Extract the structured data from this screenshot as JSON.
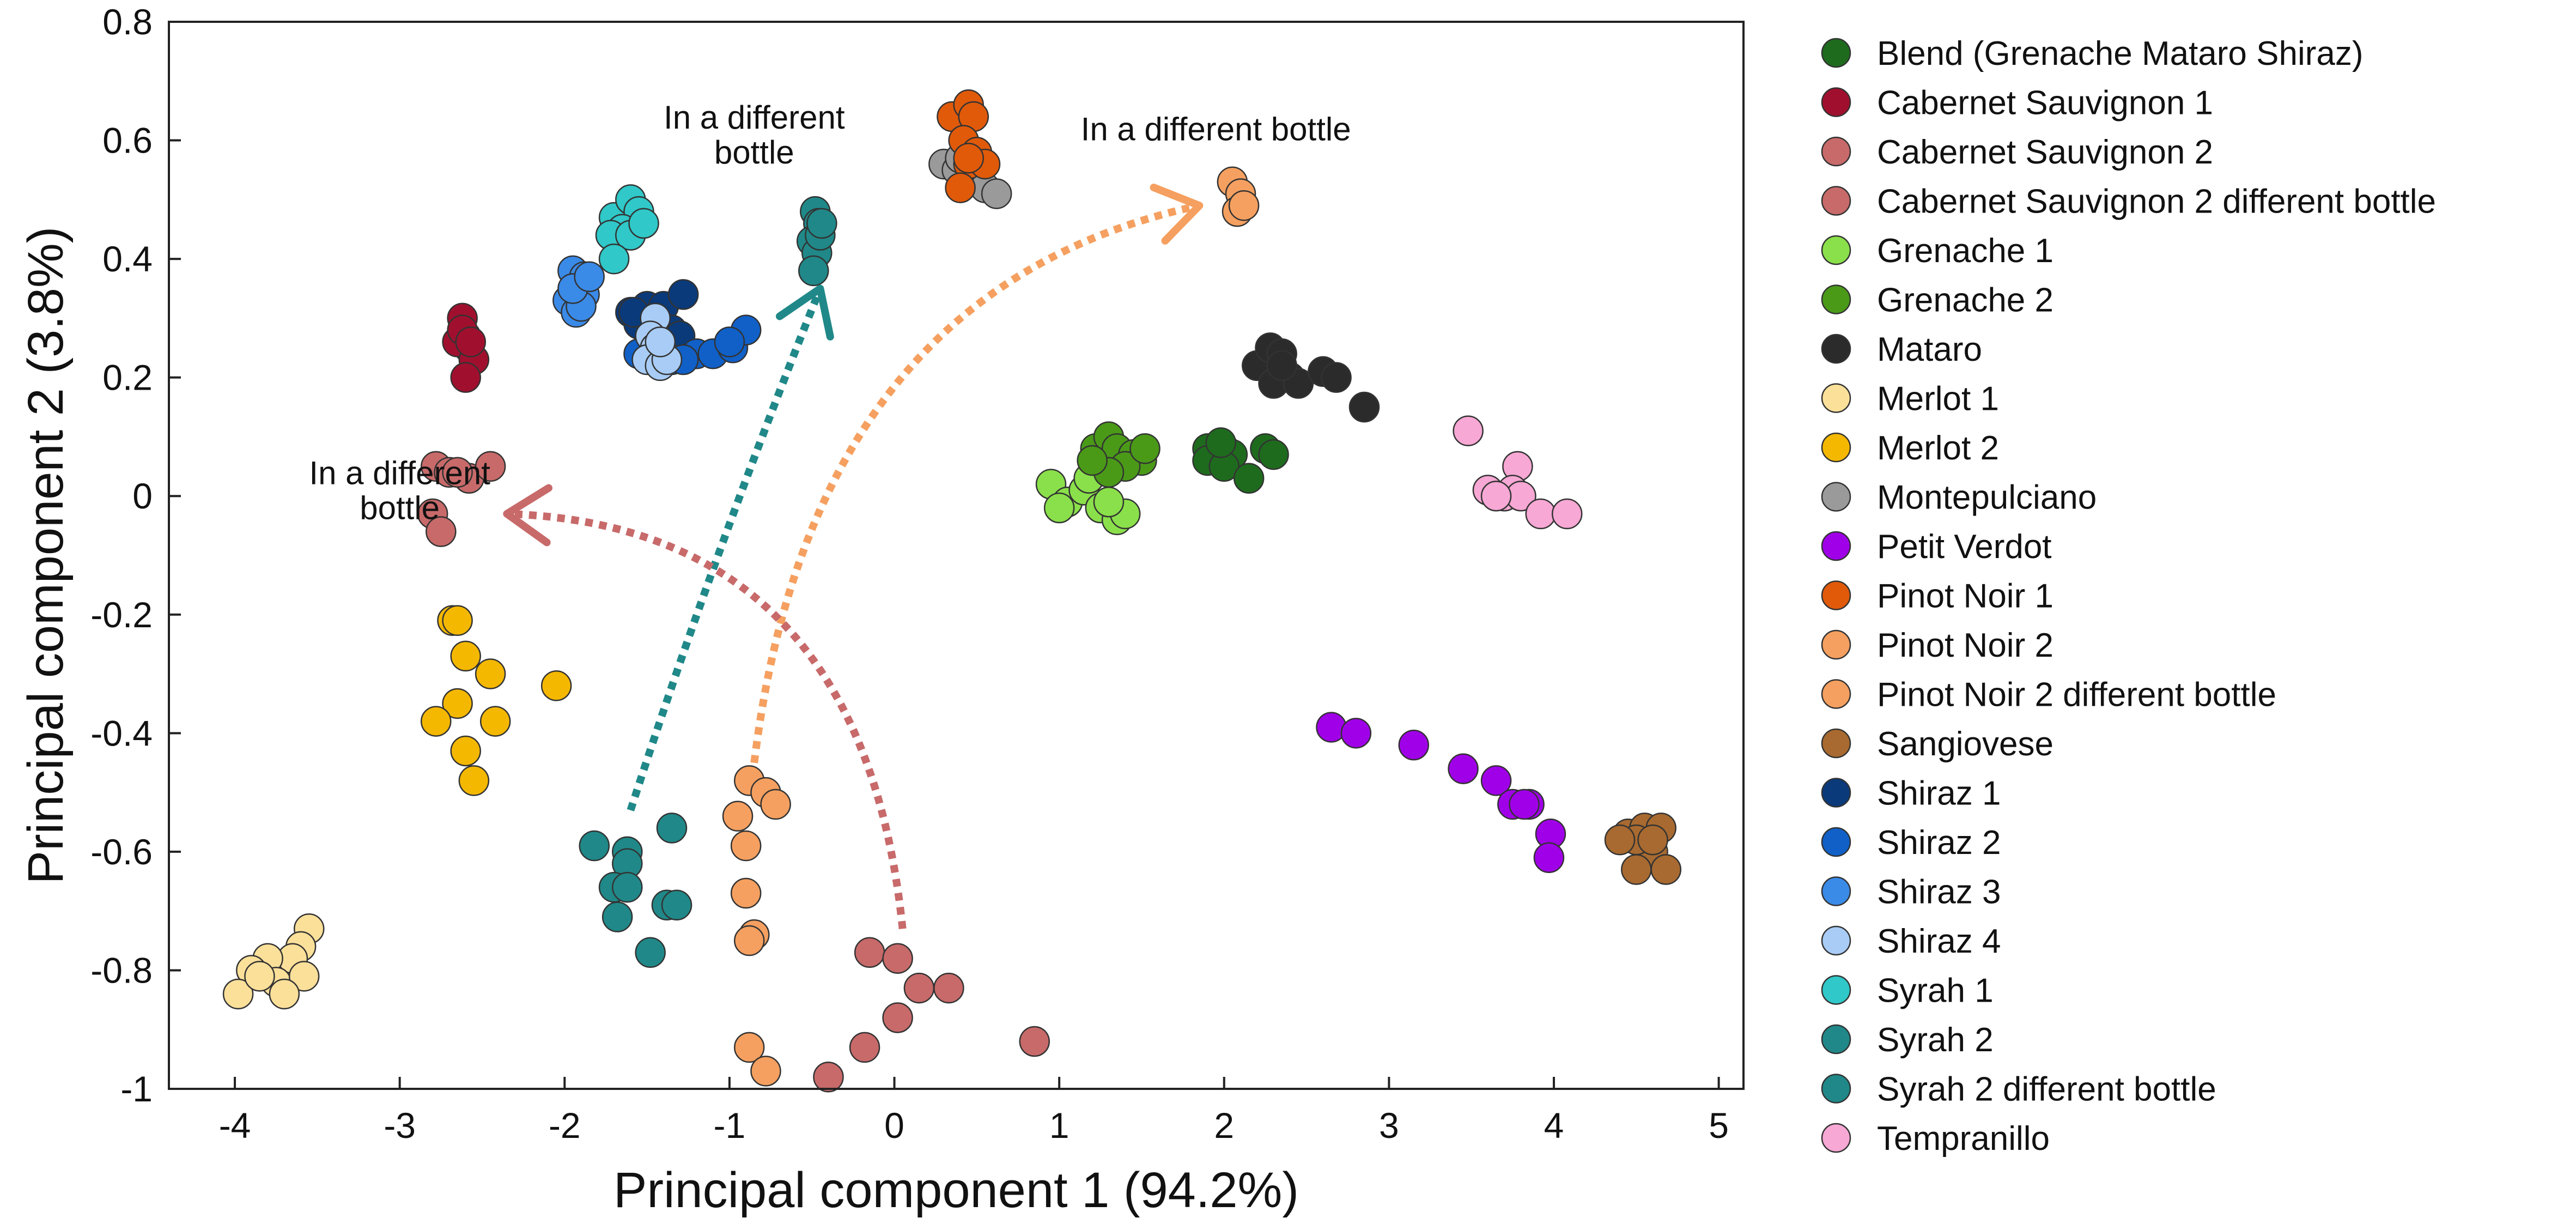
{
  "chart_data": {
    "type": "scatter",
    "xlabel": "Principal component 1 (94.2%)",
    "ylabel": "Principal component 2 (3.8%)",
    "xlim": [
      -4.4,
      5.15
    ],
    "ylim": [
      -1.0,
      0.8
    ],
    "xticks": [
      -4,
      -3,
      -2,
      -1,
      0,
      1,
      2,
      3,
      4,
      5
    ],
    "yticks": [
      0.8,
      0.6,
      0.4,
      0.2,
      0,
      -0.2,
      -0.4,
      -0.6,
      -0.8,
      -1
    ],
    "xtick_labels": [
      "-4",
      "-3",
      "-2",
      "-1",
      "0",
      "1",
      "2",
      "3",
      "4",
      "5"
    ],
    "ytick_labels": [
      "0.8",
      "0.6",
      "0.4",
      "0.2",
      "0",
      "-0.2",
      "-0.4",
      "-0.6",
      "-0.8",
      "-1"
    ],
    "grid": false,
    "legend_position": "right",
    "series": [
      {
        "name": "Blend (Grenache Mataro Shiraz)",
        "color": "#1e6b1e",
        "points": [
          [
            1.9,
            0.08
          ],
          [
            1.95,
            0.06
          ],
          [
            2.0,
            0.08
          ],
          [
            2.05,
            0.07
          ],
          [
            1.9,
            0.06
          ],
          [
            2.0,
            0.05
          ],
          [
            2.15,
            0.03
          ],
          [
            2.25,
            0.08
          ],
          [
            2.3,
            0.07
          ],
          [
            1.98,
            0.09
          ]
        ]
      },
      {
        "name": "Cabernet Sauvignon 1",
        "color": "#a0102e",
        "points": [
          [
            -2.62,
            0.3
          ],
          [
            -2.6,
            0.27
          ],
          [
            -2.58,
            0.25
          ],
          [
            -2.65,
            0.26
          ],
          [
            -2.55,
            0.23
          ],
          [
            -2.6,
            0.2
          ],
          [
            -2.62,
            0.28
          ],
          [
            -2.57,
            0.26
          ]
        ]
      },
      {
        "name": "Cabernet Sauvignon 2",
        "color": "#c86a6a",
        "points": [
          [
            -0.15,
            -0.77
          ],
          [
            0.02,
            -0.78
          ],
          [
            0.15,
            -0.83
          ],
          [
            0.33,
            -0.83
          ],
          [
            0.02,
            -0.88
          ],
          [
            -0.18,
            -0.93
          ],
          [
            0.85,
            -0.92
          ],
          [
            -0.4,
            -0.98
          ]
        ]
      },
      {
        "name": "Cabernet Sauvignon 2 different bottle",
        "color": "#c86a6a",
        "points": [
          [
            -2.78,
            0.05
          ],
          [
            -2.7,
            0.04
          ],
          [
            -2.58,
            0.03
          ],
          [
            -2.45,
            0.05
          ],
          [
            -2.8,
            -0.03
          ],
          [
            -2.75,
            -0.06
          ],
          [
            -2.65,
            0.04
          ]
        ]
      },
      {
        "name": "Grenache 1",
        "color": "#8ae04a",
        "points": [
          [
            0.95,
            0.02
          ],
          [
            1.05,
            -0.01
          ],
          [
            1.15,
            0.01
          ],
          [
            1.25,
            -0.02
          ],
          [
            1.35,
            -0.04
          ],
          [
            1.4,
            -0.03
          ],
          [
            1.18,
            0.03
          ],
          [
            1.0,
            -0.02
          ],
          [
            1.3,
            -0.01
          ]
        ]
      },
      {
        "name": "Grenache 2",
        "color": "#4a9a18",
        "points": [
          [
            1.22,
            0.08
          ],
          [
            1.3,
            0.1
          ],
          [
            1.35,
            0.08
          ],
          [
            1.45,
            0.07
          ],
          [
            1.5,
            0.06
          ],
          [
            1.4,
            0.05
          ],
          [
            1.3,
            0.04
          ],
          [
            1.2,
            0.06
          ],
          [
            1.52,
            0.08
          ]
        ]
      },
      {
        "name": "Mataro",
        "color": "#2b2b2b",
        "points": [
          [
            2.2,
            0.22
          ],
          [
            2.28,
            0.25
          ],
          [
            2.35,
            0.24
          ],
          [
            2.4,
            0.2
          ],
          [
            2.3,
            0.19
          ],
          [
            2.45,
            0.19
          ],
          [
            2.6,
            0.21
          ],
          [
            2.68,
            0.2
          ],
          [
            2.85,
            0.15
          ],
          [
            2.35,
            0.22
          ]
        ]
      },
      {
        "name": "Merlot 1",
        "color": "#fbe09a",
        "points": [
          [
            -3.55,
            -0.73
          ],
          [
            -3.6,
            -0.76
          ],
          [
            -3.65,
            -0.78
          ],
          [
            -3.8,
            -0.78
          ],
          [
            -3.9,
            -0.8
          ],
          [
            -3.75,
            -0.82
          ],
          [
            -3.58,
            -0.81
          ],
          [
            -3.7,
            -0.84
          ],
          [
            -3.98,
            -0.84
          ],
          [
            -3.85,
            -0.81
          ]
        ]
      },
      {
        "name": "Merlot 2",
        "color": "#f5b800",
        "points": [
          [
            -2.68,
            -0.21
          ],
          [
            -2.65,
            -0.21
          ],
          [
            -2.6,
            -0.27
          ],
          [
            -2.45,
            -0.3
          ],
          [
            -2.05,
            -0.32
          ],
          [
            -2.65,
            -0.35
          ],
          [
            -2.78,
            -0.38
          ],
          [
            -2.42,
            -0.38
          ],
          [
            -2.6,
            -0.43
          ],
          [
            -2.55,
            -0.48
          ]
        ]
      },
      {
        "name": "Montepulciano",
        "color": "#9a9a9a",
        "points": [
          [
            0.3,
            0.56
          ],
          [
            0.38,
            0.55
          ],
          [
            0.45,
            0.53
          ],
          [
            0.55,
            0.52
          ],
          [
            0.62,
            0.51
          ],
          [
            0.4,
            0.57
          ]
        ]
      },
      {
        "name": "Petit Verdot",
        "color": "#a000e8",
        "points": [
          [
            2.65,
            -0.39
          ],
          [
            2.8,
            -0.4
          ],
          [
            3.15,
            -0.42
          ],
          [
            3.45,
            -0.46
          ],
          [
            3.65,
            -0.48
          ],
          [
            3.75,
            -0.52
          ],
          [
            3.85,
            -0.52
          ],
          [
            3.98,
            -0.57
          ],
          [
            3.97,
            -0.61
          ],
          [
            3.82,
            -0.52
          ]
        ]
      },
      {
        "name": "Pinot Noir 1",
        "color": "#e05a0a",
        "points": [
          [
            0.35,
            0.64
          ],
          [
            0.45,
            0.66
          ],
          [
            0.48,
            0.64
          ],
          [
            0.42,
            0.6
          ],
          [
            0.45,
            0.56
          ],
          [
            0.5,
            0.58
          ],
          [
            0.55,
            0.56
          ],
          [
            0.4,
            0.52
          ],
          [
            0.45,
            0.57
          ]
        ]
      },
      {
        "name": "Pinot Noir 2",
        "color": "#f5a060",
        "points": [
          [
            -0.88,
            -0.48
          ],
          [
            -0.78,
            -0.5
          ],
          [
            -0.72,
            -0.52
          ],
          [
            -0.95,
            -0.54
          ],
          [
            -0.9,
            -0.59
          ],
          [
            -0.9,
            -0.67
          ],
          [
            -0.85,
            -0.74
          ],
          [
            -0.88,
            -0.75
          ],
          [
            -0.88,
            -0.93
          ],
          [
            -0.78,
            -0.97
          ]
        ]
      },
      {
        "name": "Pinot Noir 2 different bottle",
        "color": "#f5a060",
        "points": [
          [
            2.05,
            0.53
          ],
          [
            2.1,
            0.51
          ],
          [
            2.08,
            0.48
          ],
          [
            2.12,
            0.49
          ]
        ]
      },
      {
        "name": "Sangiovese",
        "color": "#a86a30",
        "points": [
          [
            4.45,
            -0.57
          ],
          [
            4.55,
            -0.56
          ],
          [
            4.65,
            -0.56
          ],
          [
            4.6,
            -0.6
          ],
          [
            4.5,
            -0.58
          ],
          [
            4.4,
            -0.58
          ],
          [
            4.5,
            -0.63
          ],
          [
            4.68,
            -0.63
          ],
          [
            4.6,
            -0.58
          ]
        ]
      },
      {
        "name": "Shiraz 1",
        "color": "#0a3a7a",
        "points": [
          [
            -1.6,
            0.31
          ],
          [
            -1.5,
            0.32
          ],
          [
            -1.4,
            0.32
          ],
          [
            -1.45,
            0.3
          ],
          [
            -1.55,
            0.29
          ],
          [
            -1.35,
            0.28
          ],
          [
            -1.28,
            0.34
          ],
          [
            -1.58,
            0.31
          ],
          [
            -1.3,
            0.27
          ]
        ]
      },
      {
        "name": "Shiraz 2",
        "color": "#1060c8",
        "points": [
          [
            -1.55,
            0.24
          ],
          [
            -1.45,
            0.24
          ],
          [
            -1.35,
            0.23
          ],
          [
            -1.2,
            0.24
          ],
          [
            -1.1,
            0.24
          ],
          [
            -0.98,
            0.25
          ],
          [
            -0.9,
            0.28
          ],
          [
            -1.0,
            0.26
          ],
          [
            -1.28,
            0.23
          ]
        ]
      },
      {
        "name": "Shiraz 3",
        "color": "#3a8ae8",
        "points": [
          [
            -1.95,
            0.38
          ],
          [
            -1.88,
            0.37
          ],
          [
            -1.98,
            0.33
          ],
          [
            -1.93,
            0.31
          ],
          [
            -1.88,
            0.34
          ],
          [
            -1.9,
            0.32
          ],
          [
            -1.95,
            0.35
          ],
          [
            -1.85,
            0.37
          ]
        ]
      },
      {
        "name": "Shiraz 4",
        "color": "#a8ccf5",
        "points": [
          [
            -1.45,
            0.3
          ],
          [
            -1.48,
            0.27
          ],
          [
            -1.45,
            0.25
          ],
          [
            -1.5,
            0.23
          ],
          [
            -1.42,
            0.22
          ],
          [
            -1.38,
            0.23
          ],
          [
            -1.42,
            0.26
          ]
        ]
      },
      {
        "name": "Syrah 1",
        "color": "#30c8c8",
        "points": [
          [
            -1.7,
            0.47
          ],
          [
            -1.6,
            0.5
          ],
          [
            -1.55,
            0.48
          ],
          [
            -1.65,
            0.45
          ],
          [
            -1.72,
            0.44
          ],
          [
            -1.6,
            0.44
          ],
          [
            -1.52,
            0.46
          ],
          [
            -1.7,
            0.4
          ]
        ]
      },
      {
        "name": "Syrah 2",
        "color": "#208888",
        "points": [
          [
            -1.82,
            -0.59
          ],
          [
            -1.62,
            -0.6
          ],
          [
            -1.62,
            -0.62
          ],
          [
            -1.7,
            -0.66
          ],
          [
            -1.62,
            -0.66
          ],
          [
            -1.35,
            -0.56
          ],
          [
            -1.38,
            -0.69
          ],
          [
            -1.32,
            -0.69
          ],
          [
            -1.68,
            -0.71
          ],
          [
            -1.48,
            -0.77
          ]
        ]
      },
      {
        "name": "Syrah 2 different bottle",
        "color": "#208888",
        "points": [
          [
            -0.48,
            0.48
          ],
          [
            -0.46,
            0.46
          ],
          [
            -0.5,
            0.43
          ],
          [
            -0.47,
            0.41
          ],
          [
            -0.49,
            0.38
          ],
          [
            -0.45,
            0.44
          ],
          [
            -0.44,
            0.46
          ]
        ]
      },
      {
        "name": "Tempranillo",
        "color": "#f7a8d4",
        "points": [
          [
            3.48,
            0.11
          ],
          [
            3.78,
            0.05
          ],
          [
            3.6,
            0.01
          ],
          [
            3.7,
            0.0
          ],
          [
            3.75,
            0.01
          ],
          [
            3.8,
            0.0
          ],
          [
            3.92,
            -0.03
          ],
          [
            4.08,
            -0.03
          ],
          [
            3.65,
            0.0
          ]
        ]
      }
    ],
    "annotations": [
      {
        "lines": [
          "In a different",
          "bottle"
        ],
        "x": -0.85,
        "y": 0.62,
        "anchor": "middle"
      },
      {
        "lines": [
          "In a different bottle"
        ],
        "x": 1.95,
        "y": 0.6,
        "anchor": "middle"
      },
      {
        "lines": [
          "In a different",
          "bottle"
        ],
        "x": -3.0,
        "y": 0.02,
        "anchor": "middle"
      }
    ],
    "arrows": [
      {
        "color": "#208888",
        "from": [
          -1.6,
          -0.53
        ],
        "ctrl": [
          -1.1,
          -0.1
        ],
        "to": [
          -0.45,
          0.35
        ]
      },
      {
        "color": "#f5a060",
        "from": [
          -0.85,
          -0.45
        ],
        "ctrl": [
          -0.5,
          0.35
        ],
        "to": [
          1.85,
          0.49
        ]
      },
      {
        "color": "#c86a6a",
        "from": [
          0.05,
          -0.73
        ],
        "ctrl": [
          -0.2,
          -0.05
        ],
        "to": [
          -2.35,
          -0.03
        ]
      }
    ]
  }
}
